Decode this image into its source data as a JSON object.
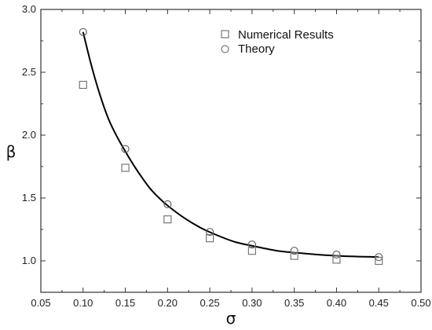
{
  "chart_data": {
    "type": "scatter",
    "title": "",
    "xlabel": "σ",
    "ylabel": "β",
    "xlim": [
      0.05,
      0.5
    ],
    "ylim": [
      0.75,
      3.0
    ],
    "xticks": [
      "0.05",
      "0.10",
      "0.15",
      "0.20",
      "0.25",
      "0.30",
      "0.35",
      "0.40",
      "0.45",
      "0.50"
    ],
    "yticks": [
      "1.0",
      "1.5",
      "2.0",
      "2.5",
      "3.0"
    ],
    "grid": false,
    "legend_position": "top-right",
    "series": [
      {
        "name": "Numerical Results",
        "marker": "square",
        "x": [
          0.1,
          0.15,
          0.2,
          0.25,
          0.3,
          0.35,
          0.4,
          0.45
        ],
        "y": [
          2.4,
          1.74,
          1.33,
          1.18,
          1.08,
          1.04,
          1.01,
          1.0
        ]
      },
      {
        "name": "Theory",
        "marker": "circle",
        "x": [
          0.1,
          0.15,
          0.2,
          0.25,
          0.3,
          0.35,
          0.4,
          0.45
        ],
        "y": [
          2.82,
          1.89,
          1.45,
          1.23,
          1.13,
          1.08,
          1.05,
          1.03
        ]
      }
    ],
    "curve": {
      "x": [
        0.1,
        0.11,
        0.12,
        0.13,
        0.14,
        0.15,
        0.16,
        0.17,
        0.18,
        0.19,
        0.2,
        0.22,
        0.24,
        0.26,
        0.28,
        0.3,
        0.33,
        0.36,
        0.4,
        0.45
      ],
      "y": [
        2.82,
        2.55,
        2.32,
        2.13,
        1.99,
        1.87,
        1.76,
        1.66,
        1.57,
        1.5,
        1.44,
        1.34,
        1.26,
        1.2,
        1.15,
        1.12,
        1.08,
        1.06,
        1.04,
        1.03
      ]
    }
  }
}
